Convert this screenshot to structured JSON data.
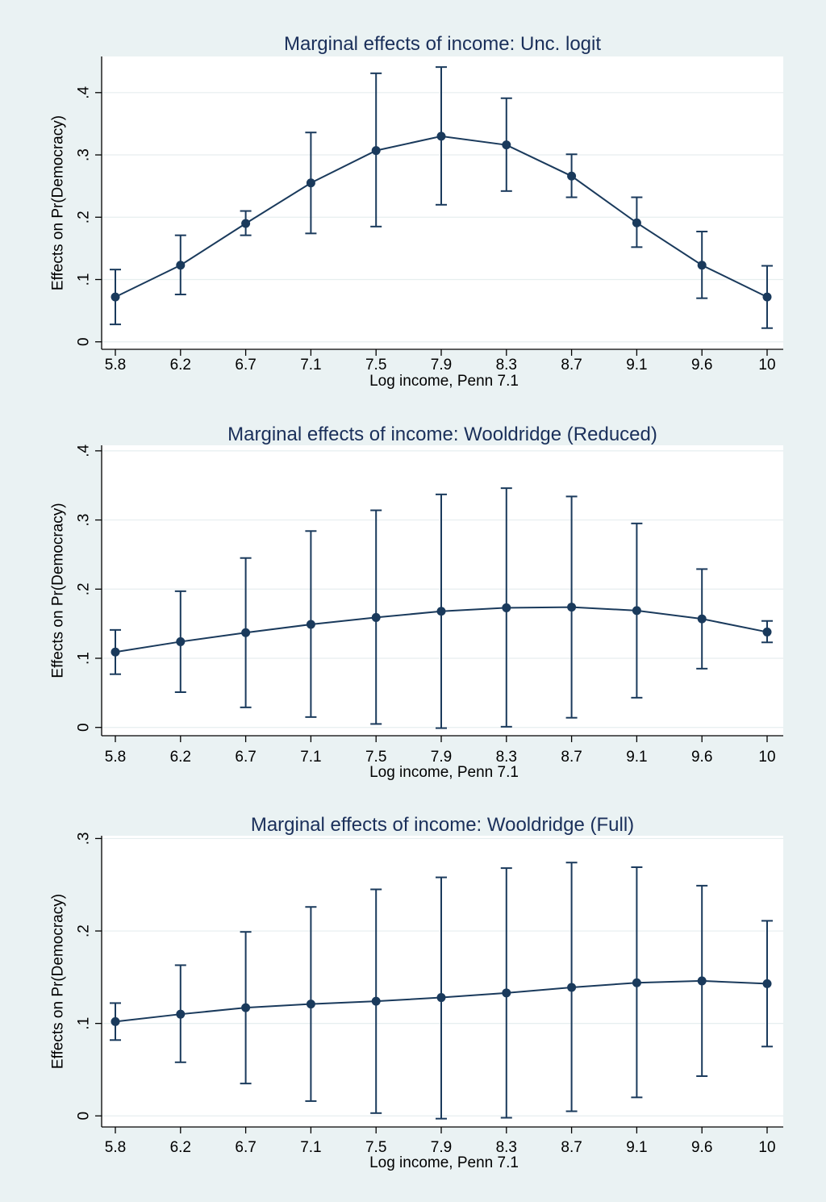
{
  "colors": {
    "page_background": "#eaf2f3",
    "plot_background": "#ffffff",
    "series": "#1a3a5c",
    "grid": "#e6eeef",
    "title": "#1a2f5a"
  },
  "chart_data": [
    {
      "type": "line",
      "title": "Marginal effects of income: Unc. logit",
      "xlabel": "Log income, Penn 7.1",
      "ylabel": "Effects on Pr(Democracy)",
      "categories": [
        "5.8",
        "6.2",
        "6.7",
        "7.1",
        "7.5",
        "7.9",
        "8.3",
        "8.7",
        "9.1",
        "9.6",
        "10"
      ],
      "values": [
        0.072,
        0.123,
        0.19,
        0.255,
        0.307,
        0.33,
        0.316,
        0.266,
        0.191,
        0.123,
        0.072
      ],
      "ci_lower": [
        0.028,
        0.076,
        0.171,
        0.174,
        0.185,
        0.22,
        0.242,
        0.232,
        0.152,
        0.07,
        0.022
      ],
      "ci_upper": [
        0.116,
        0.171,
        0.21,
        0.336,
        0.431,
        0.441,
        0.391,
        0.301,
        0.232,
        0.177,
        0.122
      ],
      "ylim": [
        -0.012,
        0.458
      ],
      "yticks": [
        0,
        0.1,
        0.2,
        0.3,
        0.4
      ],
      "ytick_labels": [
        "0",
        ".1",
        ".2",
        ".3",
        ".4"
      ],
      "grid": true,
      "error_bars": true
    },
    {
      "type": "line",
      "title": "Marginal effects of income: Wooldridge (Reduced)",
      "xlabel": "Log income, Penn 7.1",
      "ylabel": "Effects on Pr(Democracy)",
      "categories": [
        "5.8",
        "6.2",
        "6.7",
        "7.1",
        "7.5",
        "7.9",
        "8.3",
        "8.7",
        "9.1",
        "9.6",
        "10"
      ],
      "values": [
        0.109,
        0.124,
        0.137,
        0.149,
        0.159,
        0.168,
        0.173,
        0.174,
        0.169,
        0.157,
        0.138
      ],
      "ci_lower": [
        0.077,
        0.051,
        0.029,
        0.015,
        0.005,
        -0.001,
        0.001,
        0.014,
        0.043,
        0.085,
        0.123
      ],
      "ci_upper": [
        0.141,
        0.197,
        0.245,
        0.284,
        0.314,
        0.337,
        0.346,
        0.334,
        0.295,
        0.229,
        0.154
      ],
      "ylim": [
        -0.012,
        0.408
      ],
      "yticks": [
        0,
        0.1,
        0.2,
        0.3,
        0.4
      ],
      "ytick_labels": [
        "0",
        ".1",
        ".2",
        ".3",
        ".4"
      ],
      "grid": true,
      "error_bars": true
    },
    {
      "type": "line",
      "title": "Marginal effects of income: Wooldridge (Full)",
      "xlabel": "Log income, Penn 7.1",
      "ylabel": "Effects on Pr(Democracy)",
      "categories": [
        "5.8",
        "6.2",
        "6.7",
        "7.1",
        "7.5",
        "7.9",
        "8.3",
        "8.7",
        "9.1",
        "9.6",
        "10"
      ],
      "values": [
        0.102,
        0.11,
        0.117,
        0.121,
        0.124,
        0.128,
        0.133,
        0.139,
        0.144,
        0.146,
        0.143
      ],
      "ci_lower": [
        0.082,
        0.058,
        0.035,
        0.016,
        0.003,
        -0.003,
        -0.002,
        0.005,
        0.02,
        0.043,
        0.075
      ],
      "ci_upper": [
        0.122,
        0.163,
        0.199,
        0.226,
        0.245,
        0.258,
        0.268,
        0.274,
        0.269,
        0.249,
        0.211
      ],
      "ylim": [
        -0.012,
        0.303
      ],
      "yticks": [
        0,
        0.1,
        0.2,
        0.3
      ],
      "ytick_labels": [
        "0",
        ".1",
        ".2",
        ".3"
      ],
      "grid": true,
      "error_bars": true
    }
  ]
}
